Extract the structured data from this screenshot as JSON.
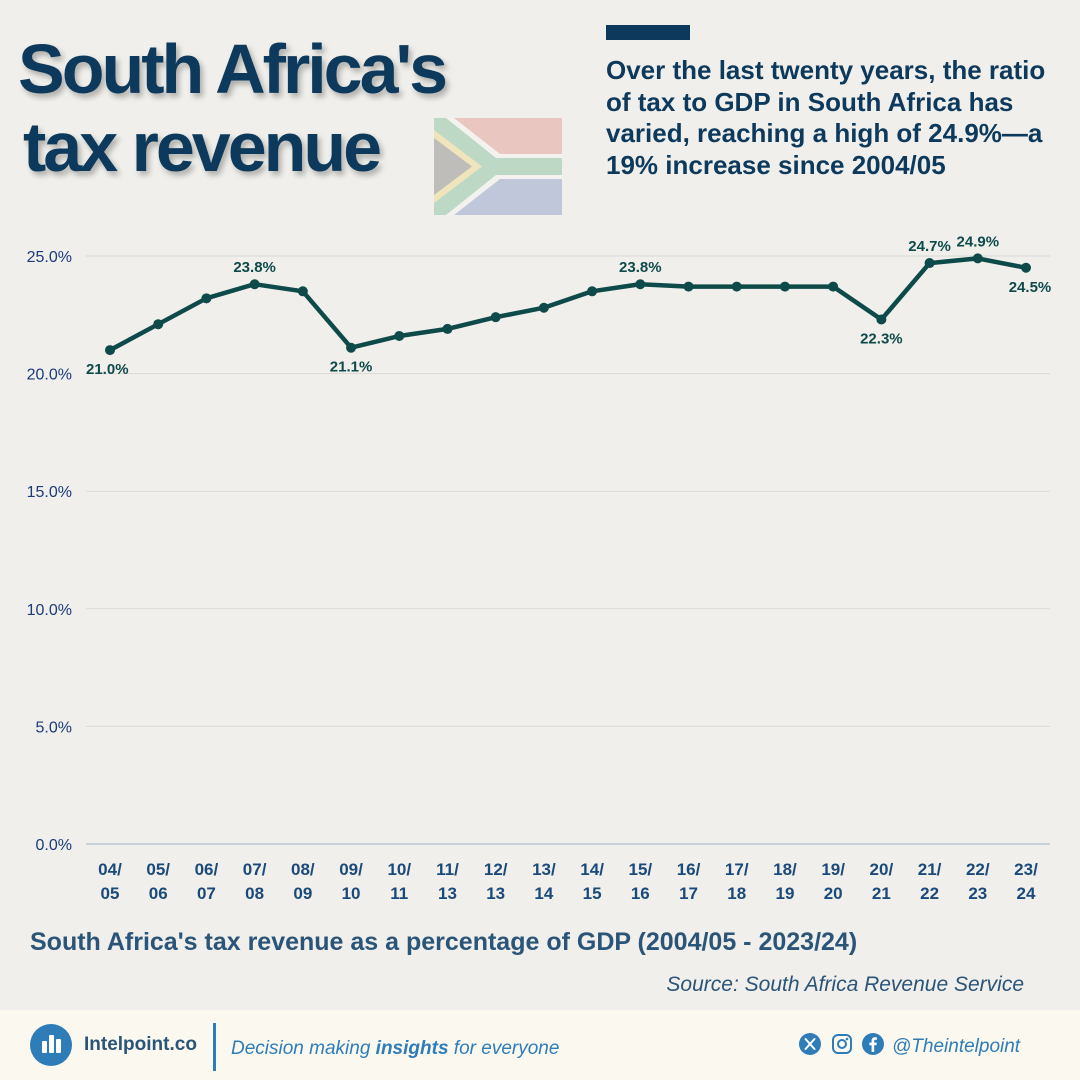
{
  "header": {
    "title_line1": "South Africa's",
    "title_line2": "tax revenue",
    "subtitle": "Over the last twenty years, the ratio of tax to GDP in South Africa has varied, reaching a high of 24.9%—a 19% increase since 2004/05"
  },
  "chart_data": {
    "type": "line",
    "categories": [
      [
        "04/",
        "05"
      ],
      [
        "05/",
        "06"
      ],
      [
        "06/",
        "07"
      ],
      [
        "07/",
        "08"
      ],
      [
        "08/",
        "09"
      ],
      [
        "09/",
        "10"
      ],
      [
        "10/",
        "11"
      ],
      [
        "11/",
        "13"
      ],
      [
        "12/",
        "13"
      ],
      [
        "13/",
        "14"
      ],
      [
        "14/",
        "15"
      ],
      [
        "15/",
        "16"
      ],
      [
        "16/",
        "17"
      ],
      [
        "17/",
        "18"
      ],
      [
        "18/",
        "19"
      ],
      [
        "19/",
        "20"
      ],
      [
        "20/",
        "21"
      ],
      [
        "21/",
        "22"
      ],
      [
        "22/",
        "23"
      ],
      [
        "23/",
        "24"
      ]
    ],
    "values": [
      21.0,
      22.1,
      23.2,
      23.8,
      23.5,
      21.1,
      21.6,
      21.9,
      22.4,
      22.8,
      23.5,
      23.8,
      23.7,
      23.7,
      23.7,
      23.7,
      22.3,
      24.7,
      24.9,
      24.5
    ],
    "data_labels": [
      {
        "index": 0,
        "text": "21.0%",
        "pos": "below"
      },
      {
        "index": 3,
        "text": "23.8%",
        "pos": "above"
      },
      {
        "index": 5,
        "text": "21.1%",
        "pos": "below"
      },
      {
        "index": 11,
        "text": "23.8%",
        "pos": "above"
      },
      {
        "index": 16,
        "text": "22.3%",
        "pos": "below"
      },
      {
        "index": 17,
        "text": "24.7%",
        "pos": "above"
      },
      {
        "index": 18,
        "text": "24.9%",
        "pos": "above"
      },
      {
        "index": 19,
        "text": "24.5%",
        "pos": "below"
      }
    ],
    "y_ticks": [
      "0.0%",
      "5.0%",
      "10.0%",
      "15.0%",
      "20.0%",
      "25.0%"
    ],
    "y_tick_values": [
      0,
      5,
      10,
      15,
      20,
      25
    ],
    "ylim": [
      0,
      25.6
    ],
    "grid": true,
    "line_color": "#0e4a4a",
    "title": "South Africa's tax revenue as a percentage of GDP (2004/05 - 2023/24)",
    "source": "Source: South Africa Revenue Service"
  },
  "footer": {
    "brand": "Intelpoint.co",
    "tagline_pre": "Decision making ",
    "tagline_bold": "insights",
    "tagline_post": " for everyone",
    "handle": "@Theintelpoint",
    "icons": [
      "x-logo-icon",
      "instagram-icon",
      "facebook-icon"
    ]
  },
  "colors": {
    "background": "#f0efeb",
    "navy": "#0d3a5c",
    "accent_blue": "#2e7cb8",
    "footer_bg": "#fbf9ef"
  }
}
